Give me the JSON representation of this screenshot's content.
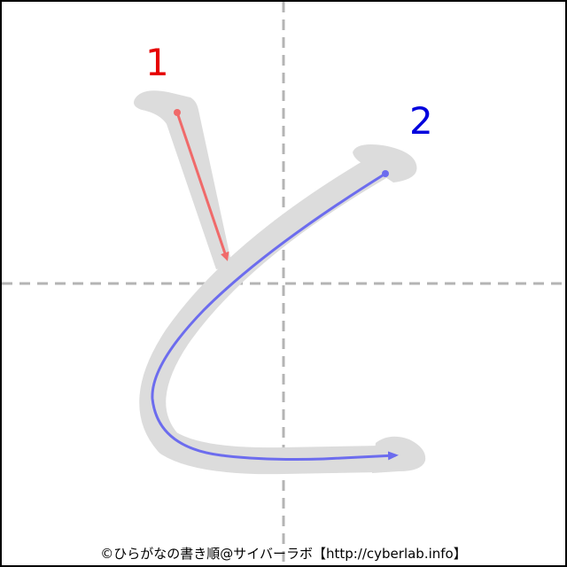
{
  "strokes": [
    {
      "number": "1",
      "color": "#e60000",
      "arrow_color": "#f06a6a"
    },
    {
      "number": "2",
      "color": "#0000dd",
      "arrow_color": "#6c6cee"
    }
  ],
  "guide": {
    "line_color": "#b4b4b4",
    "ink_color": "#dcdcdc"
  },
  "credit": "©ひらがなの書き順@サイバーラボ【http://cyberlab.info】"
}
